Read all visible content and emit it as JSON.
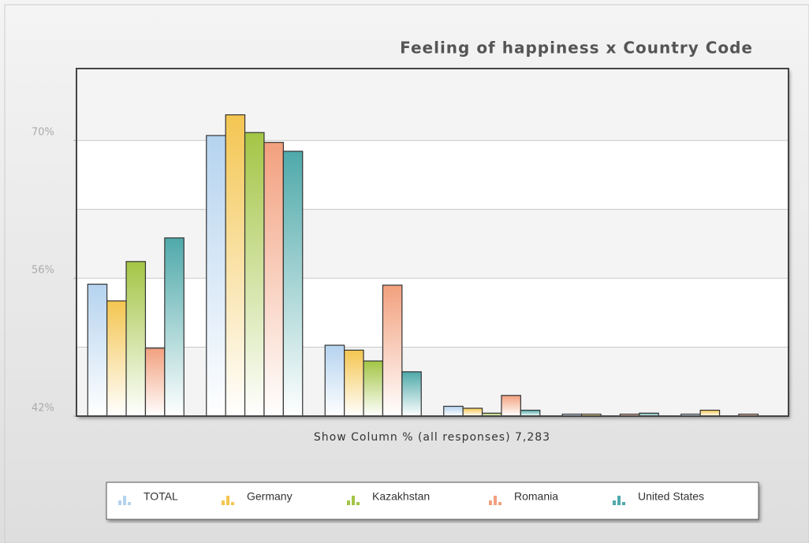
{
  "chart_data": {
    "type": "bar",
    "title": "Feeling of happiness x Country Code",
    "x_label": "Show Column % (all responses) 7,283",
    "categories": [
      null,
      null,
      null,
      null,
      null,
      null
    ],
    "series": [
      {
        "name": "TOTAL",
        "color": "#b5d3ef",
        "values": [
          55.4,
          70.5,
          49.2,
          43.0,
          42.2,
          42.2
        ]
      },
      {
        "name": "Germany",
        "color": "#f4c651",
        "values": [
          53.7,
          72.6,
          48.7,
          42.8,
          42.2,
          42.6
        ]
      },
      {
        "name": "Kazakhstan",
        "color": "#a3c545",
        "values": [
          57.7,
          70.8,
          47.6,
          42.3,
          null,
          null
        ]
      },
      {
        "name": "Romania",
        "color": "#f2a07e",
        "values": [
          48.9,
          69.8,
          55.3,
          44.1,
          42.2,
          42.2
        ]
      },
      {
        "name": "United States",
        "color": "#4fa9aa",
        "values": [
          60.1,
          68.9,
          46.5,
          42.6,
          42.3,
          null
        ]
      }
    ],
    "ylim": [
      42,
      77.3
    ],
    "yticks": [
      {
        "value": 42,
        "label": "42%"
      },
      {
        "value": 56,
        "label": "56%"
      },
      {
        "value": 70,
        "label": "70%"
      }
    ],
    "grid_lines": [
      49,
      56,
      63,
      70
    ],
    "grid": true,
    "legend": "bottom"
  }
}
